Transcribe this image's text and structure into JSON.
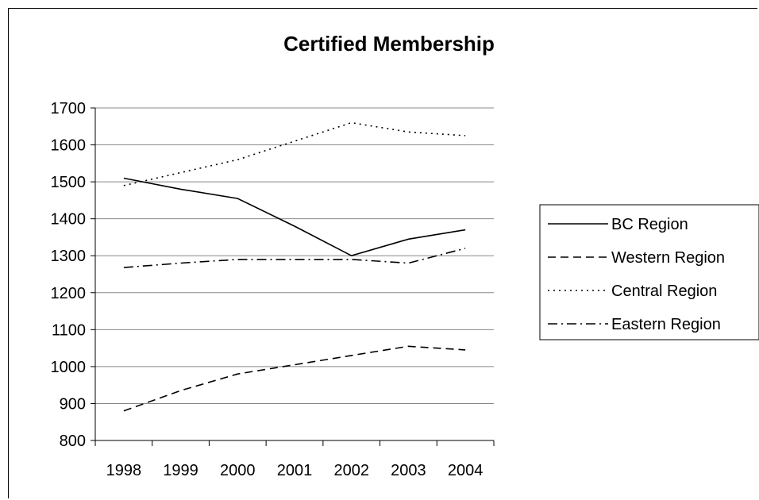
{
  "chart_data": {
    "type": "line",
    "title": "Certified Membership",
    "xlabel": "",
    "ylabel": "",
    "categories": [
      "1998",
      "1999",
      "2000",
      "2001",
      "2002",
      "2003",
      "2004"
    ],
    "ylim": [
      800,
      1700
    ],
    "yticks": [
      1700,
      1600,
      1500,
      1400,
      1300,
      1200,
      1100,
      1000,
      900,
      800
    ],
    "grid": true,
    "legend_position": "right",
    "series": [
      {
        "name": "BC Region",
        "style": "solid",
        "color": "#000000",
        "values": [
          1510,
          1480,
          1455,
          1380,
          1300,
          1345,
          1370
        ]
      },
      {
        "name": "Western Region",
        "style": "dashed",
        "color": "#000000",
        "values": [
          880,
          935,
          980,
          1005,
          1030,
          1055,
          1045
        ]
      },
      {
        "name": "Central Region",
        "style": "dotted",
        "color": "#000000",
        "values": [
          1490,
          1525,
          1560,
          1610,
          1660,
          1635,
          1625
        ]
      },
      {
        "name": "Eastern Region",
        "style": "dashdot",
        "color": "#000000",
        "values": [
          1268,
          1280,
          1290,
          1290,
          1290,
          1280,
          1320
        ]
      }
    ]
  }
}
